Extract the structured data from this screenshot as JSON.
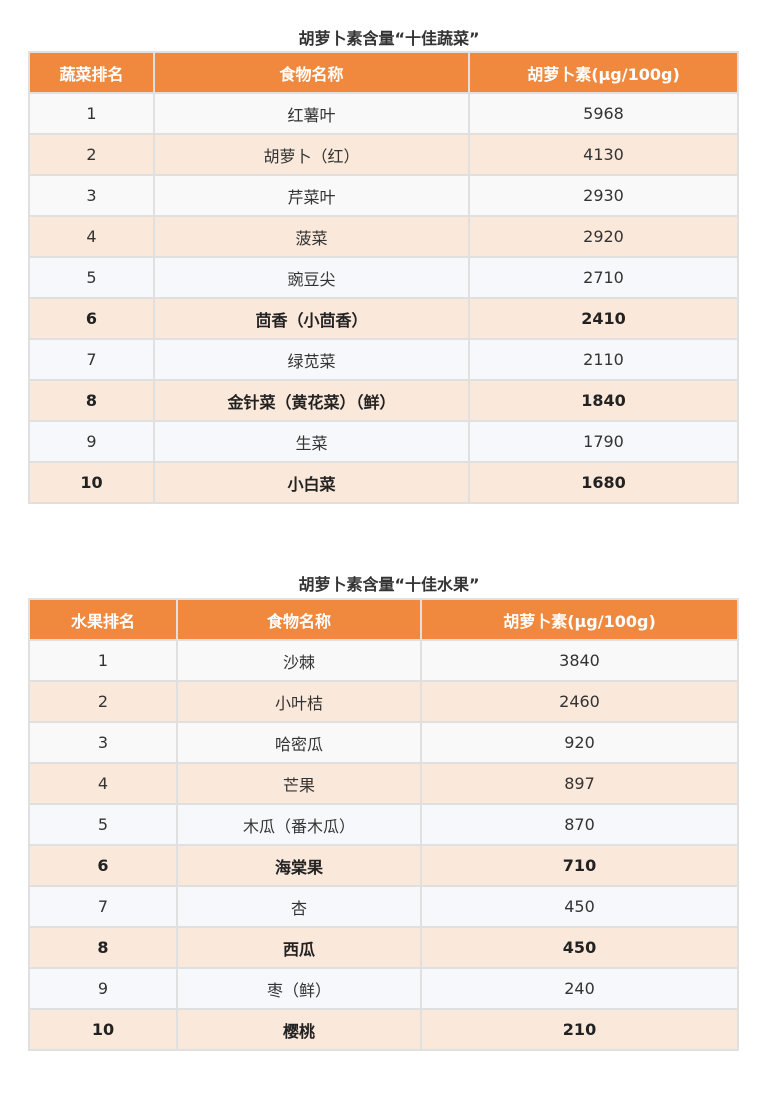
{
  "vegetables": {
    "title": "胡萝卜素含量“十佳蔬菜”",
    "headers": [
      "蔬菜排名",
      "食物名称",
      "胡萝卜素(μg/100g)"
    ],
    "rows": [
      {
        "rank": "1",
        "name": "红薯叶",
        "value": "5968"
      },
      {
        "rank": "2",
        "name": "胡萝卜（红）",
        "value": "4130"
      },
      {
        "rank": "3",
        "name": "芹菜叶",
        "value": "2930"
      },
      {
        "rank": "4",
        "name": "菠菜",
        "value": "2920"
      },
      {
        "rank": "5",
        "name": "豌豆尖",
        "value": "2710"
      },
      {
        "rank": "6",
        "name": "茴香（小茴香）",
        "value": "2410"
      },
      {
        "rank": "7",
        "name": "绿苋菜",
        "value": "2110"
      },
      {
        "rank": "8",
        "name": "金针菜（黄花菜）（鲜）",
        "value": "1840"
      },
      {
        "rank": "9",
        "name": "生菜",
        "value": "1790"
      },
      {
        "rank": "10",
        "name": "小白菜",
        "value": "1680"
      }
    ]
  },
  "fruits": {
    "title": "胡萝卜素含量“十佳水果”",
    "headers": [
      "水果排名",
      "食物名称",
      "胡萝卜素(μg/100g)"
    ],
    "rows": [
      {
        "rank": "1",
        "name": "沙棘",
        "value": "3840"
      },
      {
        "rank": "2",
        "name": "小叶桔",
        "value": "2460"
      },
      {
        "rank": "3",
        "name": "哈密瓜",
        "value": "920"
      },
      {
        "rank": "4",
        "name": "芒果",
        "value": "897"
      },
      {
        "rank": "5",
        "name": "木瓜（番木瓜）",
        "value": "870"
      },
      {
        "rank": "6",
        "name": "海棠果",
        "value": "710"
      },
      {
        "rank": "7",
        "name": "杏",
        "value": "450"
      },
      {
        "rank": "8",
        "name": "西瓜",
        "value": "450"
      },
      {
        "rank": "9",
        "name": "枣（鲜）",
        "value": "240"
      },
      {
        "rank": "10",
        "name": "樱桃",
        "value": "210"
      }
    ]
  },
  "colors": {
    "header": "#f0883e",
    "row_alt": "#fae8da",
    "row": "#f9f9f9"
  }
}
